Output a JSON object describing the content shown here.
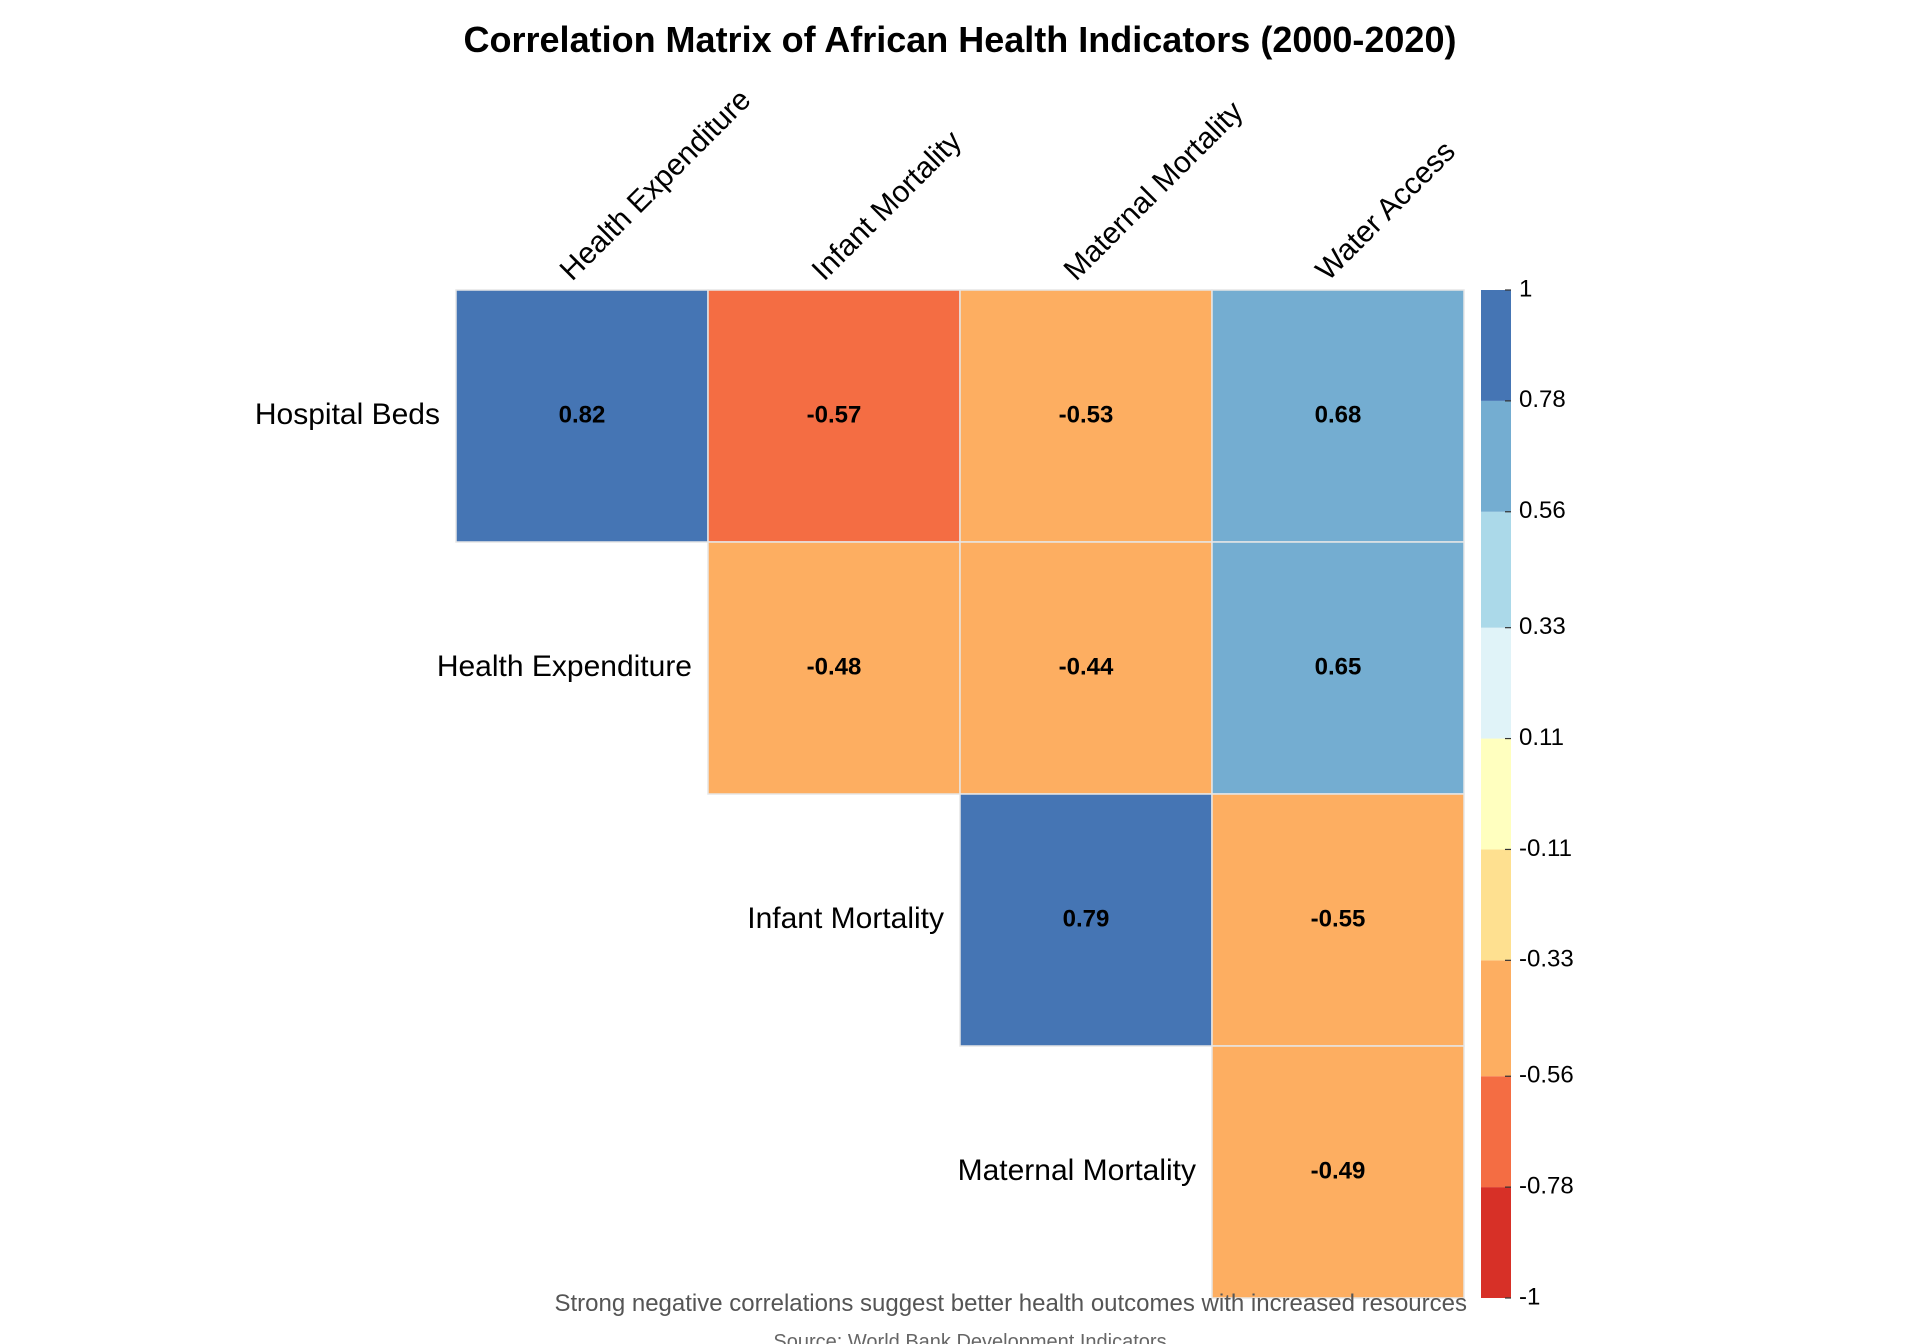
{
  "chart_data": {
    "type": "heatmap",
    "title": "Correlation Matrix of African Health Indicators (2000-2020)",
    "subtitle": "Strong negative correlations suggest better health outcomes with increased resources",
    "caption": "Source: World Bank Development Indicators",
    "columns": [
      "Health Expenditure",
      "Infant Mortality",
      "Maternal Mortality",
      "Water Access"
    ],
    "rows": [
      "Hospital Beds",
      "Health Expenditure",
      "Infant Mortality",
      "Maternal Mortality"
    ],
    "cells": [
      {
        "row": "Hospital Beds",
        "col": "Health Expenditure",
        "value": 0.82,
        "label": "0.82"
      },
      {
        "row": "Hospital Beds",
        "col": "Infant Mortality",
        "value": -0.57,
        "label": "-0.57"
      },
      {
        "row": "Hospital Beds",
        "col": "Maternal Mortality",
        "value": -0.53,
        "label": "-0.53"
      },
      {
        "row": "Hospital Beds",
        "col": "Water Access",
        "value": 0.68,
        "label": "0.68"
      },
      {
        "row": "Health Expenditure",
        "col": "Infant Mortality",
        "value": -0.48,
        "label": "-0.48"
      },
      {
        "row": "Health Expenditure",
        "col": "Maternal Mortality",
        "value": -0.44,
        "label": "-0.44"
      },
      {
        "row": "Health Expenditure",
        "col": "Water Access",
        "value": 0.65,
        "label": "0.65"
      },
      {
        "row": "Infant Mortality",
        "col": "Maternal Mortality",
        "value": 0.79,
        "label": "0.79"
      },
      {
        "row": "Infant Mortality",
        "col": "Water Access",
        "value": -0.55,
        "label": "-0.55"
      },
      {
        "row": "Maternal Mortality",
        "col": "Water Access",
        "value": -0.49,
        "label": "-0.49"
      }
    ],
    "legend": {
      "placement": "right",
      "range": [
        -1,
        1
      ],
      "ticks": [
        1,
        0.78,
        0.56,
        0.33,
        0.11,
        -0.11,
        -0.33,
        -0.56,
        -0.78,
        -1
      ],
      "tick_labels": [
        "1",
        "0.78",
        "0.56",
        "0.33",
        "0.11",
        "-0.11",
        "-0.33",
        "-0.56",
        "-0.78",
        "-1"
      ],
      "bins": [
        {
          "from": -1,
          "to": -0.78,
          "color": "#d73027"
        },
        {
          "from": -0.78,
          "to": -0.56,
          "color": "#f46d43"
        },
        {
          "from": -0.56,
          "to": -0.33,
          "color": "#fdae61"
        },
        {
          "from": -0.33,
          "to": -0.11,
          "color": "#fee090"
        },
        {
          "from": -0.11,
          "to": 0.11,
          "color": "#ffffbf"
        },
        {
          "from": 0.11,
          "to": 0.33,
          "color": "#e0f3f8"
        },
        {
          "from": 0.33,
          "to": 0.56,
          "color": "#abd9e9"
        },
        {
          "from": 0.56,
          "to": 0.78,
          "color": "#74add1"
        },
        {
          "from": 0.78,
          "to": 1,
          "color": "#4575b4"
        }
      ]
    },
    "grid": false
  }
}
